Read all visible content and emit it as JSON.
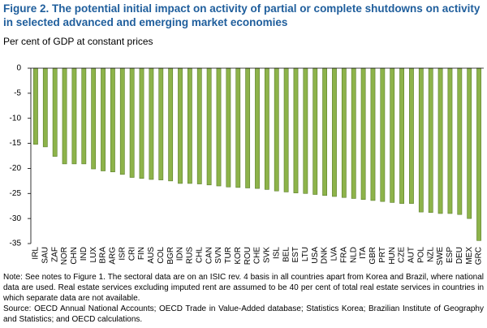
{
  "chart_data": {
    "type": "bar",
    "title": "Figure 2. The potential initial impact on activity of partial or complete shutdowns on activity in selected advanced and emerging market economies",
    "subtitle": "Per cent of GDP at constant prices",
    "categories": [
      "IRL",
      "SAU",
      "ZAF",
      "NOR",
      "CHN",
      "IND",
      "LUX",
      "BRA",
      "ARG",
      "ISR",
      "CRI",
      "FIN",
      "AUS",
      "COL",
      "BGR",
      "IDN",
      "RUS",
      "CHL",
      "CAN",
      "SVN",
      "TUR",
      "KOR",
      "ROU",
      "CHE",
      "SVK",
      "ISL",
      "BEL",
      "EST",
      "LTU",
      "USA",
      "DNK",
      "LVA",
      "FRA",
      "NLD",
      "ITA",
      "GBR",
      "PRT",
      "HUN",
      "CZE",
      "AUT",
      "POL",
      "NZL",
      "SWE",
      "ESP",
      "DEU",
      "MEX",
      "GRC"
    ],
    "values": [
      -15.2,
      -15.7,
      -17.6,
      -19.1,
      -19.1,
      -19.1,
      -20.1,
      -20.5,
      -20.7,
      -21.2,
      -21.8,
      -22.0,
      -22.2,
      -22.3,
      -22.5,
      -23.0,
      -23.0,
      -23.1,
      -23.3,
      -23.5,
      -23.7,
      -23.8,
      -23.9,
      -24.0,
      -24.2,
      -24.5,
      -24.7,
      -24.9,
      -25.0,
      -25.2,
      -25.4,
      -25.6,
      -25.8,
      -26.0,
      -26.2,
      -26.4,
      -26.6,
      -26.8,
      -27.0,
      -27.0,
      -28.7,
      -28.8,
      -29.0,
      -29.0,
      -29.2,
      -30.0,
      -34.4
    ],
    "color": "#8db34a",
    "ylim": [
      -35,
      0
    ],
    "yticks": [
      0,
      -5,
      -10,
      -15,
      -20,
      -25,
      -30,
      -35
    ],
    "grid": false,
    "notes": [
      "Note: See notes to Figure 1. The sectoral data are on an ISIC rev. 4 basis in all countries apart from Korea and Brazil, where national data are used. Real estate services excluding imputed rent are assumed to be 40 per cent of total real estate services in countries in which separate data are not available.",
      "Source: OECD Annual National Accounts; OECD Trade in Value-Added database; Statistics Korea; Brazilian Institute of Geography and Statistics; and OECD calculations."
    ]
  }
}
